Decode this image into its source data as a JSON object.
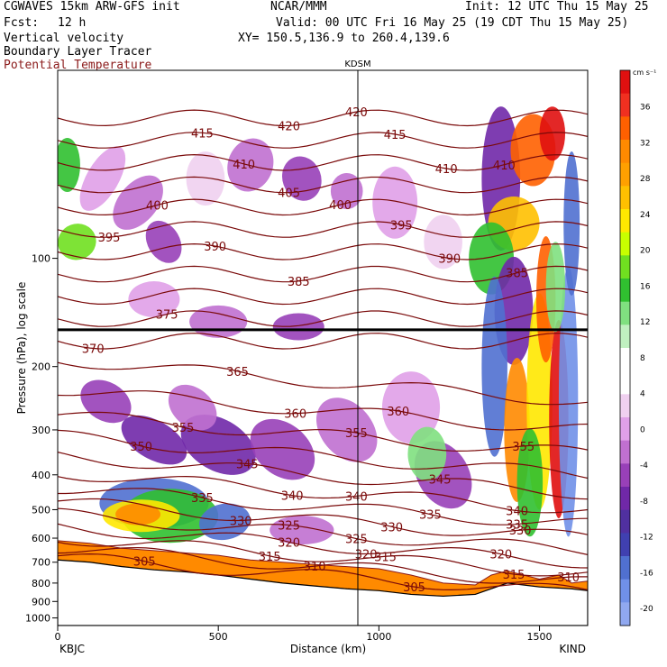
{
  "header": {
    "model": "CGWAVES 15km ARW-GFS init",
    "center": "NCAR/MMM",
    "init": "Init: 12 UTC Thu 15 May 25",
    "fcst_label": "Fcst:",
    "fcst_value": "12 h",
    "valid": "Valid: 00 UTC Fri 16 May 25 (19 CDT Thu 15 May 25)",
    "field1": "Vertical velocity",
    "xy": "XY= 150.5,136.9 to 260.4,139.6",
    "field2": "Boundary Layer Tracer",
    "field3": "Potential Temperature"
  },
  "chart_data": {
    "type": "heatmap",
    "title": "",
    "xlabel": "Distance (km)",
    "ylabel": "Pressure (hPa), log scale",
    "xlim": [
      0,
      1650
    ],
    "ylim": [
      1050,
      30
    ],
    "x_ticks": [
      0,
      500,
      1000,
      1500
    ],
    "y_ticks": [
      100,
      200,
      300,
      400,
      500,
      600,
      700,
      800,
      900,
      1000
    ],
    "y_scale": "log",
    "endpoints": {
      "left": "KBJC",
      "right": "KIND"
    },
    "marker": {
      "label": "KDSM",
      "x_km": 940
    },
    "colorbar": {
      "unit": "cm s⁻¹",
      "ticks": [
        36,
        32,
        28,
        24,
        20,
        16,
        12,
        8,
        4,
        0,
        -4,
        -8,
        -12,
        -16,
        -20
      ],
      "colors": [
        "#e01010",
        "#f03020",
        "#ff6000",
        "#ff8a00",
        "#ffa000",
        "#ffc000",
        "#ffe800",
        "#c8ff00",
        "#70e020",
        "#30c030",
        "#80e080",
        "#c0f0c0",
        "#ffffff",
        "#ffffff",
        "#f0d0f0",
        "#e0a0e8",
        "#c070d0",
        "#9840b8",
        "#7028a8",
        "#5030a0",
        "#4040b0",
        "#5070d0",
        "#7090e8",
        "#90a8f0"
      ]
    },
    "isentropes": [
      {
        "theta": 305,
        "label_x": 270
      },
      {
        "theta": 305,
        "label_x": 1110
      },
      {
        "theta": 310,
        "label_x": 800
      },
      {
        "theta": 310,
        "label_x": 1590
      },
      {
        "theta": 315,
        "label_x": 660
      },
      {
        "theta": 315,
        "label_x": 1020
      },
      {
        "theta": 315,
        "label_x": 1420
      },
      {
        "theta": 320,
        "label_x": 720
      },
      {
        "theta": 320,
        "label_x": 960
      },
      {
        "theta": 320,
        "label_x": 1380
      },
      {
        "theta": 325,
        "label_x": 720
      },
      {
        "theta": 325,
        "label_x": 930
      },
      {
        "theta": 330,
        "label_x": 570
      },
      {
        "theta": 330,
        "label_x": 1040
      },
      {
        "theta": 330,
        "label_x": 1440
      },
      {
        "theta": 335,
        "label_x": 450
      },
      {
        "theta": 335,
        "label_x": 1160
      },
      {
        "theta": 335,
        "label_x": 1430
      },
      {
        "theta": 340,
        "label_x": 730
      },
      {
        "theta": 340,
        "label_x": 930
      },
      {
        "theta": 340,
        "label_x": 1430
      },
      {
        "theta": 345,
        "label_x": 590
      },
      {
        "theta": 345,
        "label_x": 1190
      },
      {
        "theta": 350,
        "label_x": 260
      },
      {
        "theta": 355,
        "label_x": 390
      },
      {
        "theta": 355,
        "label_x": 930
      },
      {
        "theta": 355,
        "label_x": 1450
      },
      {
        "theta": 360,
        "label_x": 740
      },
      {
        "theta": 360,
        "label_x": 1060
      },
      {
        "theta": 365,
        "label_x": 560
      },
      {
        "theta": 370,
        "label_x": 110
      },
      {
        "theta": 375,
        "label_x": 340
      },
      {
        "theta": 385,
        "label_x": 750
      },
      {
        "theta": 385,
        "label_x": 1430
      },
      {
        "theta": 390,
        "label_x": 490
      },
      {
        "theta": 390,
        "label_x": 1220
      },
      {
        "theta": 395,
        "label_x": 160
      },
      {
        "theta": 395,
        "label_x": 1070
      },
      {
        "theta": 400,
        "label_x": 310
      },
      {
        "theta": 400,
        "label_x": 880
      },
      {
        "theta": 405,
        "label_x": 720
      },
      {
        "theta": 410,
        "label_x": 580
      },
      {
        "theta": 410,
        "label_x": 1210
      },
      {
        "theta": 410,
        "label_x": 1390
      },
      {
        "theta": 415,
        "label_x": 450
      },
      {
        "theta": 415,
        "label_x": 1050
      },
      {
        "theta": 420,
        "label_x": 720
      },
      {
        "theta": 420,
        "label_x": 930
      }
    ]
  }
}
